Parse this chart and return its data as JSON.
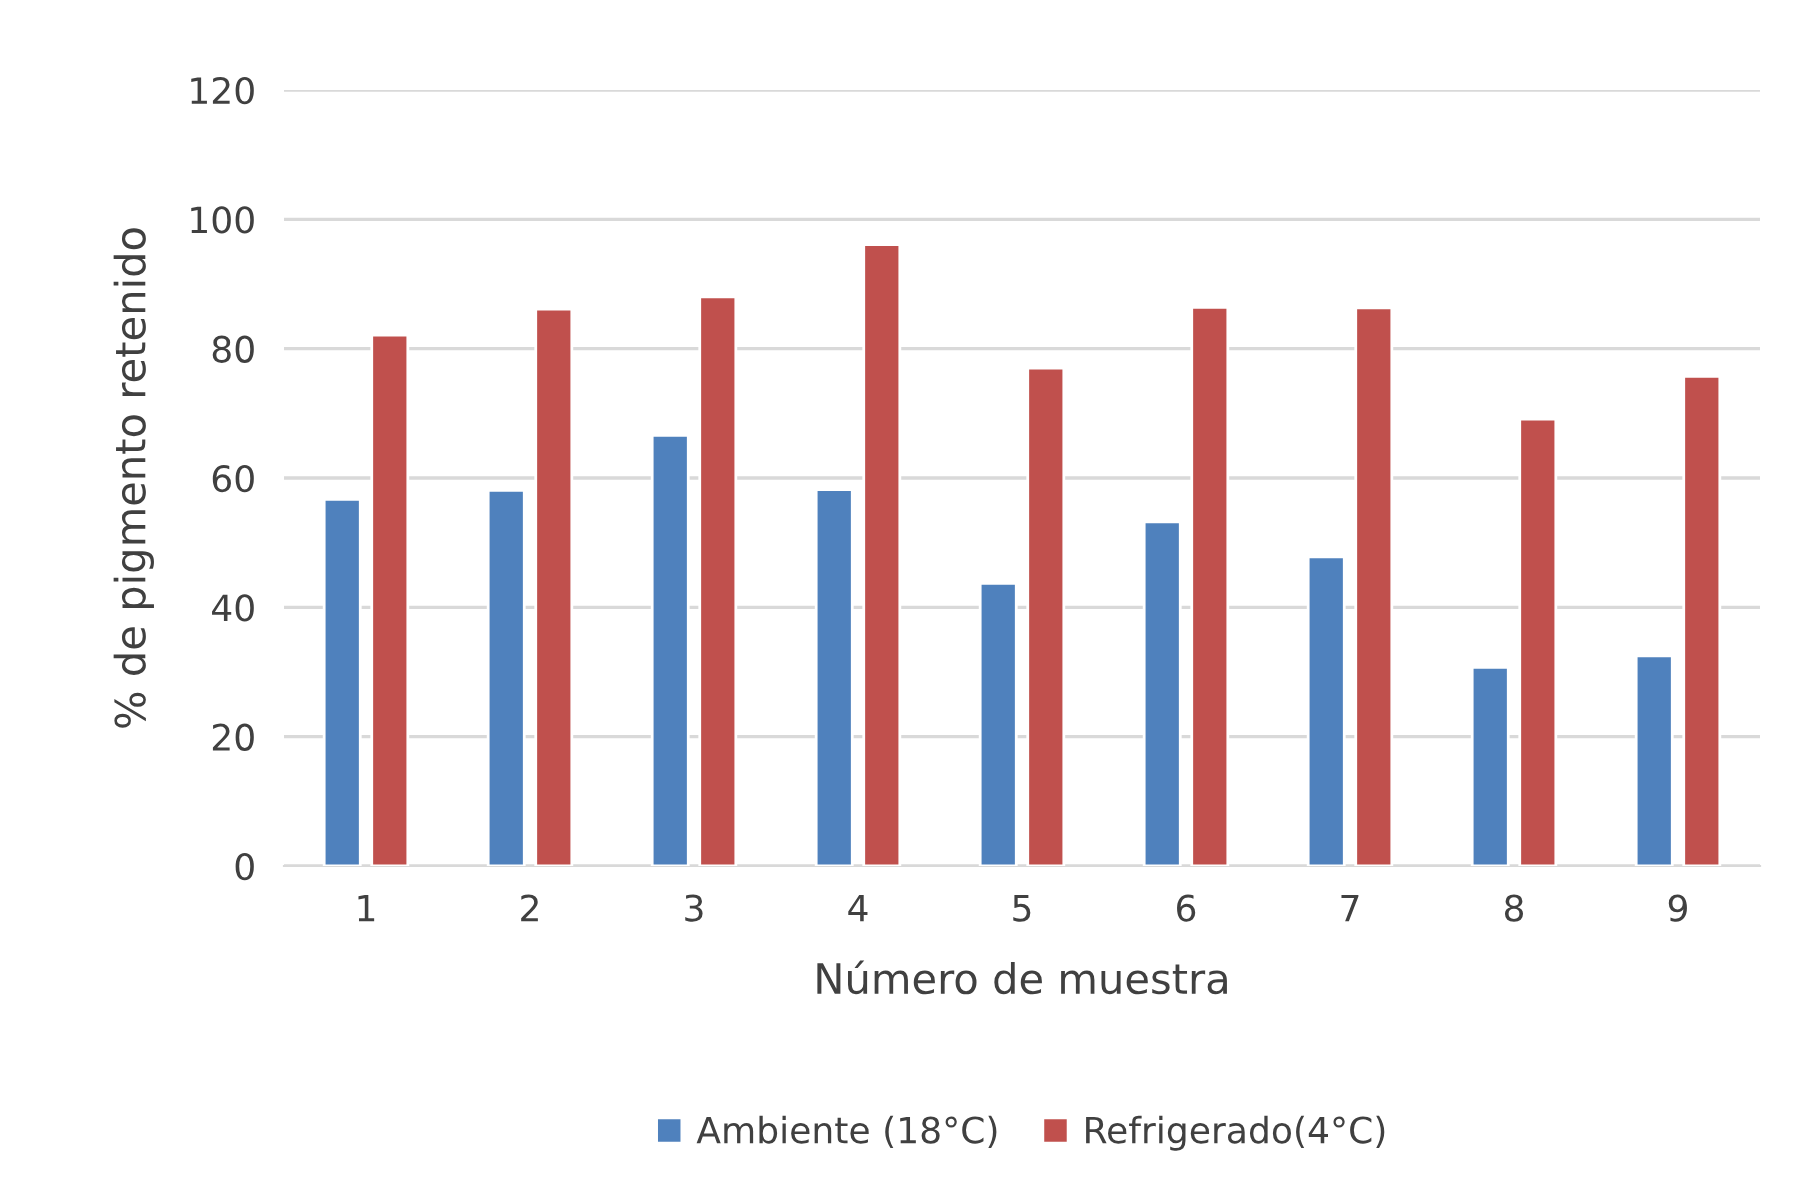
{
  "chart_data": {
    "type": "bar",
    "xlabel": "Número de muestra",
    "ylabel": "% de pigmento retenido",
    "categories": [
      "1",
      "2",
      "3",
      "4",
      "5",
      "6",
      "7",
      "8",
      "9"
    ],
    "series": [
      {
        "name": "Ambiente (18°C)",
        "color": "#4f81bd",
        "values": [
          56.7,
          58.1,
          66.6,
          58.2,
          43.7,
          53.2,
          47.8,
          30.7,
          32.5
        ]
      },
      {
        "name": "Refrigerado(4°C)",
        "color": "#c0504d",
        "values": [
          82.1,
          86.1,
          88.0,
          96.1,
          77.0,
          86.4,
          86.3,
          69.1,
          75.7
        ]
      }
    ],
    "ylim": [
      0,
      120
    ],
    "yticks": [
      0,
      20,
      40,
      60,
      80,
      100,
      120
    ],
    "grid": "y",
    "legend": "bottom"
  }
}
